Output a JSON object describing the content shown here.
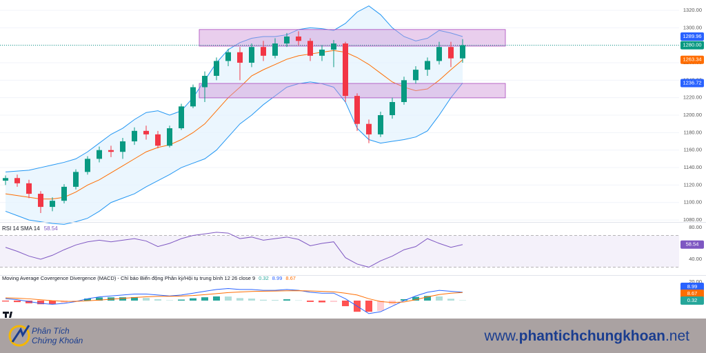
{
  "chart_data": [
    {
      "type": "candlestick",
      "open": [
        1125,
        1128,
        1122,
        1110,
        1095,
        1102,
        1118,
        1135,
        1150,
        1160,
        1158,
        1170,
        1182,
        1178,
        1165,
        1185,
        1210,
        1232,
        1245,
        1262,
        1272,
        1260,
        1278,
        1268,
        1282,
        1290,
        1285,
        1268,
        1275,
        1282,
        1222,
        1190,
        1178,
        1200,
        1215,
        1240,
        1252,
        1262,
        1278,
        1265
      ],
      "high": [
        1131,
        1132,
        1126,
        1113,
        1106,
        1121,
        1138,
        1153,
        1164,
        1165,
        1174,
        1186,
        1188,
        1182,
        1188,
        1213,
        1235,
        1250,
        1266,
        1276,
        1278,
        1282,
        1285,
        1288,
        1294,
        1296,
        1288,
        1280,
        1286,
        1284,
        1225,
        1195,
        1204,
        1220,
        1244,
        1256,
        1266,
        1284,
        1284,
        1287
      ],
      "low": [
        1120,
        1118,
        1105,
        1088,
        1090,
        1099,
        1115,
        1132,
        1146,
        1152,
        1150,
        1166,
        1172,
        1162,
        1163,
        1183,
        1208,
        1215,
        1240,
        1256,
        1240,
        1255,
        1262,
        1265,
        1278,
        1280,
        1262,
        1262,
        1255,
        1215,
        1182,
        1168,
        1175,
        1196,
        1212,
        1236,
        1245,
        1258,
        1255,
        1260
      ],
      "close": [
        1128,
        1122,
        1110,
        1095,
        1102,
        1118,
        1135,
        1150,
        1160,
        1158,
        1170,
        1182,
        1178,
        1165,
        1185,
        1210,
        1232,
        1245,
        1262,
        1272,
        1260,
        1278,
        1268,
        1282,
        1290,
        1285,
        1268,
        1275,
        1282,
        1222,
        1190,
        1178,
        1200,
        1215,
        1240,
        1252,
        1262,
        1278,
        1265,
        1280
      ],
      "up_color": "#089981",
      "down_color": "#f23645",
      "bands": {
        "upper": [
          1135,
          1136,
          1137,
          1140,
          1143,
          1146,
          1150,
          1158,
          1168,
          1178,
          1185,
          1195,
          1203,
          1205,
          1200,
          1205,
          1220,
          1240,
          1260,
          1275,
          1283,
          1288,
          1290,
          1290,
          1292,
          1298,
          1300,
          1299,
          1297,
          1305,
          1318,
          1325,
          1315,
          1300,
          1290,
          1285,
          1288,
          1297,
          1294,
          1289.96
        ],
        "middle": [
          1110,
          1108,
          1106,
          1104,
          1104,
          1106,
          1112,
          1120,
          1126,
          1134,
          1142,
          1150,
          1158,
          1163,
          1166,
          1172,
          1180,
          1190,
          1205,
          1220,
          1232,
          1245,
          1252,
          1258,
          1264,
          1268,
          1270,
          1272,
          1274,
          1272,
          1266,
          1258,
          1248,
          1238,
          1232,
          1228,
          1230,
          1240,
          1252,
          1263.34
        ],
        "lower": [
          1090,
          1085,
          1080,
          1078,
          1076,
          1075,
          1078,
          1082,
          1090,
          1100,
          1105,
          1110,
          1118,
          1125,
          1132,
          1140,
          1145,
          1150,
          1160,
          1175,
          1190,
          1200,
          1212,
          1222,
          1232,
          1236,
          1238,
          1236,
          1232,
          1215,
          1185,
          1172,
          1168,
          1170,
          1172,
          1175,
          1182,
          1200,
          1220,
          1236.72
        ],
        "band_color": "#2196f3",
        "middle_color": "#ff6d00",
        "fill_color": "#e3f2fd"
      },
      "zones": [
        [
          1279,
          1298
        ],
        [
          1219.8,
          1236.3
        ]
      ],
      "zone_color": "#ce93d8",
      "last_price": {
        "value": 1280,
        "label": "1280.00"
      },
      "last_price_color": "#089981",
      "price_labels": [
        {
          "value": 1289.96,
          "label": "1289.96",
          "color": "#2962ff"
        },
        {
          "value": 1263.34,
          "label": "1263.34",
          "color": "#ff6d00"
        },
        {
          "value": 1236.72,
          "label": "1236.72",
          "color": "#2962ff"
        }
      ],
      "ylim": [
        1077.7,
        1331.8
      ],
      "yticks": [
        {
          "value": 1080,
          "label": "1080.00"
        },
        {
          "value": 1100,
          "label": "1100.00"
        },
        {
          "value": 1120,
          "label": "1120.00"
        },
        {
          "value": 1140,
          "label": "1140.00"
        },
        {
          "value": 1160,
          "label": "1160.00"
        },
        {
          "value": 1180,
          "label": "1180.00"
        },
        {
          "value": 1200,
          "label": "1200.00"
        },
        {
          "value": 1220,
          "label": "1220.00"
        },
        {
          "value": 1240,
          "label": "1240.00"
        },
        {
          "value": 1260,
          "label": "1260.00"
        },
        {
          "value": 1280,
          "label": "1280.00"
        },
        {
          "value": 1300,
          "label": "1300.00"
        },
        {
          "value": 1320,
          "label": "1320.00"
        }
      ],
      "grid": true
    },
    {
      "type": "line",
      "title": "RSI 14 SMA 14",
      "values": [
        55,
        50,
        44,
        40,
        45,
        52,
        58,
        62,
        64,
        62,
        64,
        66,
        63,
        56,
        60,
        66,
        70,
        72,
        74,
        73,
        66,
        68,
        64,
        66,
        68,
        65,
        57,
        60,
        62,
        42,
        34,
        30,
        38,
        44,
        52,
        56,
        66,
        60,
        55,
        58.54
      ],
      "color": "#7e57c2",
      "band": [
        30,
        70
      ],
      "band_color": "#ede7f6",
      "ylim": [
        20.9,
        86.1
      ],
      "yticks": [
        {
          "value": 80,
          "label": "80.00"
        },
        {
          "value": 40,
          "label": "40.00"
        }
      ]
    },
    {
      "type": "macd",
      "title": "Moving Average Covergence Divergence (MACD) - Chỉ báo Biến động Phân kỳ/Hội tụ trung bình 12 26 close 9",
      "histogram": [
        -1,
        -1.6,
        -2.9,
        -3.9,
        -3.9,
        -2.3,
        -0.2,
        2.2,
        3.4,
        3.5,
        3.6,
        3.7,
        2.9,
        1.5,
        0.4,
        1.1,
        2.5,
        3.6,
        4.5,
        4.4,
        2.7,
        2.2,
        0.9,
        0.7,
        1.4,
        0.3,
        -1.4,
        -1.9,
        -1.5,
        -6,
        -12,
        -12,
        -11,
        -4,
        1.5,
        4,
        5,
        4.5,
        2,
        0.32
      ],
      "macd": [
        2,
        1,
        -1,
        -3,
        -4,
        -3,
        -1,
        2,
        4,
        5,
        6,
        7,
        7,
        6,
        5,
        6,
        8,
        10,
        12,
        13,
        12,
        12,
        11,
        11,
        12,
        11,
        9,
        8,
        8,
        2,
        -6,
        -14,
        -12,
        -6,
        0,
        5,
        9,
        11,
        10,
        8.99
      ],
      "signal": [
        3,
        2.6,
        1.9,
        0.9,
        -0.1,
        -0.7,
        -0.8,
        -0.2,
        0.6,
        1.5,
        2.4,
        3.3,
        4.1,
        4.5,
        4.6,
        4.9,
        5.5,
        6.4,
        7.5,
        8.6,
        9.3,
        9.8,
        10.1,
        10.3,
        10.6,
        10.7,
        10.4,
        9.9,
        9.5,
        8,
        6,
        2,
        -1,
        -2,
        -1.5,
        1,
        4,
        6.5,
        8,
        8.67
      ],
      "macd_color": "#2962ff",
      "signal_color": "#ff6d00",
      "hist_colors": [
        "#26a69a",
        "#b2dfdb",
        "#ffcdd2",
        "#ff5252"
      ],
      "ylim": [
        -17.8,
        26.7
      ],
      "yticks": [
        {
          "value": 20,
          "label": "20.00"
        }
      ]
    }
  ],
  "footer": {
    "brand_line1": "Phân Tích",
    "brand_line2": "Chứng Khoán",
    "url_prefix": "www.",
    "url_name": "phantichchungkhoan",
    "url_suffix": ".net"
  }
}
